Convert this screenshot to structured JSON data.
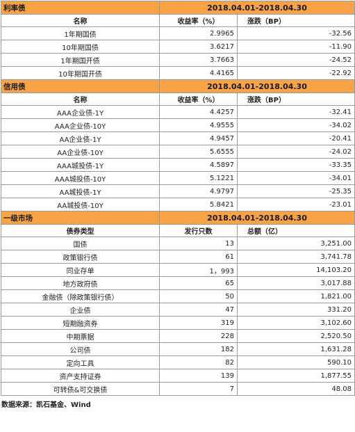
{
  "sections": [
    {
      "title": "利率债",
      "period": "2018.04.01-2018.04.30",
      "headers": [
        "名称",
        "收益率（%）",
        "涨跌（BP）"
      ],
      "rows": [
        [
          "1年期国债",
          "2.9965",
          "-32.56"
        ],
        [
          "10年期国债",
          "3.6217",
          "-11.90"
        ],
        [
          "1年期国开债",
          "3.7663",
          "-24.52"
        ],
        [
          "10年期国开债",
          "4.4165",
          "-22.92"
        ]
      ]
    },
    {
      "title": "信用债",
      "period": "2018.04.01-2018.04.30",
      "headers": [
        "名称",
        "收益率（%）",
        "涨跌（BP）"
      ],
      "rows": [
        [
          "AAA企业债-1Y",
          "4.4257",
          "-32.41"
        ],
        [
          "AAA企业债-10Y",
          "4.9555",
          "-34.02"
        ],
        [
          "AA企业债-1Y",
          "4.9457",
          "-20.41"
        ],
        [
          "AA企业债-10Y",
          "5.6555",
          "-24.02"
        ],
        [
          "AAA城投债-1Y",
          "4.5897",
          "-33.35"
        ],
        [
          "AAA城投债-10Y",
          "5.1221",
          "-34.01"
        ],
        [
          "AA城投债-1Y",
          "4.9797",
          "-25.35"
        ],
        [
          "AA城投债-10Y",
          "5.8421",
          "-23.01"
        ]
      ]
    },
    {
      "title": "一级市场",
      "period": "2018.04.01-2018.04.30",
      "headers": [
        "债券类型",
        "发行只数",
        "总额（亿）"
      ],
      "rows": [
        [
          "国债",
          "13",
          "3,251.00"
        ],
        [
          "政策银行债",
          "61",
          "3,741.78"
        ],
        [
          "同业存单",
          "1，993",
          "14,103.20"
        ],
        [
          "地方政府债",
          "65",
          "3,017.88"
        ],
        [
          "金融债（除政策银行债）",
          "50",
          "1,821.00"
        ],
        [
          "企业债",
          "47",
          "331.20"
        ],
        [
          "短期融资券",
          "319",
          "3,102.60"
        ],
        [
          "中期票据",
          "228",
          "2,520.50"
        ],
        [
          "公司债",
          "182",
          "1,631.28"
        ],
        [
          "定向工具",
          "82",
          "590.10"
        ],
        [
          "资产支持证券",
          "139",
          "1,877.55"
        ],
        [
          "可转债&可交换债",
          "7",
          "48.08"
        ]
      ]
    }
  ],
  "source": "数据来源：凯石基金、Wind",
  "colors": {
    "header_fill": "#f7a246",
    "border": "#9a9a9a"
  }
}
